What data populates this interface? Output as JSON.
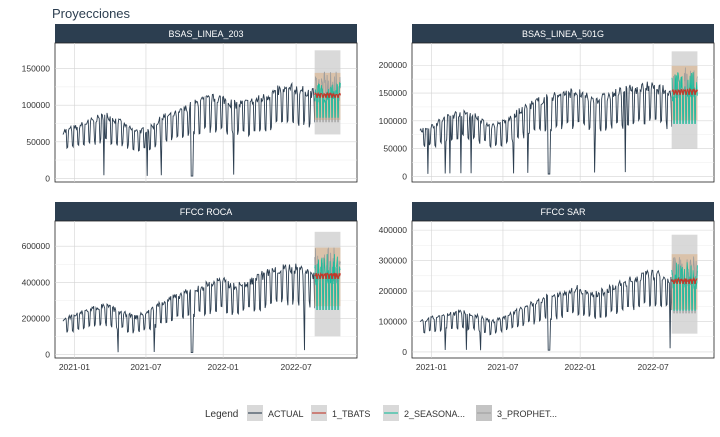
{
  "title": "Proyecciones",
  "legend": {
    "title": "Legend",
    "items": [
      {
        "label": "ACTUAL",
        "color": "#2c3e50"
      },
      {
        "label": "1_TBATS",
        "color": "#c0392b"
      },
      {
        "label": "2_SEASONA...",
        "color": "#18bc9c"
      },
      {
        "label": "3_PROPHET...",
        "color": "#a0a0a0"
      }
    ]
  },
  "colors": {
    "strip": "#2c3e50",
    "strip_text": "#ffffff",
    "actual": "#2c3e50",
    "tbats": "#c0392b",
    "seasonal": "#18bc9c",
    "prophet": "#9e9e9e",
    "band_tbats": "#d9b99a",
    "grid": "#d4d4d4"
  },
  "chart_data": [
    {
      "type": "line",
      "title": "BSAS_LINEA_203",
      "x_ticks": [
        "2021-01",
        "2021-07",
        "2022-01",
        "2022-07"
      ],
      "y_ticks": [
        0,
        50000,
        100000,
        150000
      ],
      "y_tick_labels": [
        "0",
        "50000",
        "100000",
        "150000"
      ],
      "ylim": [
        -5000,
        185000
      ],
      "trend_actual": [
        [
          0,
          65000
        ],
        [
          0.05,
          72000
        ],
        [
          0.1,
          80000
        ],
        [
          0.15,
          88000
        ],
        [
          0.2,
          78000
        ],
        [
          0.25,
          65000
        ],
        [
          0.3,
          68000
        ],
        [
          0.35,
          85000
        ],
        [
          0.4,
          90000
        ],
        [
          0.45,
          102000
        ],
        [
          0.5,
          110000
        ],
        [
          0.55,
          112000
        ],
        [
          0.6,
          103000
        ],
        [
          0.65,
          105000
        ],
        [
          0.7,
          112000
        ],
        [
          0.75,
          122000
        ],
        [
          0.8,
          125000
        ],
        [
          0.85,
          122000
        ],
        [
          0.88,
          118000
        ]
      ],
      "dip_actual": 0.45,
      "forecast_center": 112000,
      "forecast_high": 175000,
      "forecast_low": 60000
    },
    {
      "type": "line",
      "title": "BSAS_LINEA_501G",
      "x_ticks": [
        "2021-01",
        "2021-07",
        "2022-01",
        "2022-07"
      ],
      "y_ticks": [
        0,
        50000,
        100000,
        150000,
        200000
      ],
      "y_tick_labels": [
        "0",
        "50000",
        "100000",
        "150000",
        "200000"
      ],
      "ylim": [
        -10000,
        240000
      ],
      "trend_actual": [
        [
          0,
          85000
        ],
        [
          0.05,
          95000
        ],
        [
          0.1,
          110000
        ],
        [
          0.15,
          118000
        ],
        [
          0.2,
          110000
        ],
        [
          0.25,
          92000
        ],
        [
          0.3,
          100000
        ],
        [
          0.35,
          120000
        ],
        [
          0.4,
          135000
        ],
        [
          0.45,
          145000
        ],
        [
          0.5,
          152000
        ],
        [
          0.55,
          155000
        ],
        [
          0.6,
          140000
        ],
        [
          0.65,
          145000
        ],
        [
          0.7,
          155000
        ],
        [
          0.75,
          160000
        ],
        [
          0.8,
          165000
        ],
        [
          0.85,
          158000
        ],
        [
          0.88,
          150000
        ]
      ],
      "dip_actual": 0.45,
      "forecast_center": 150000,
      "forecast_high": 225000,
      "forecast_low": 50000
    },
    {
      "type": "line",
      "title": "FFCC ROCA",
      "x_ticks": [
        "2021-01",
        "2021-07",
        "2022-01",
        "2022-07"
      ],
      "y_ticks": [
        0,
        200000,
        400000,
        600000
      ],
      "y_tick_labels": [
        "0",
        "200000",
        "400000",
        "600000"
      ],
      "ylim": [
        -20000,
        740000
      ],
      "trend_actual": [
        [
          0,
          200000
        ],
        [
          0.05,
          225000
        ],
        [
          0.1,
          260000
        ],
        [
          0.15,
          275000
        ],
        [
          0.2,
          240000
        ],
        [
          0.25,
          210000
        ],
        [
          0.3,
          240000
        ],
        [
          0.35,
          300000
        ],
        [
          0.4,
          330000
        ],
        [
          0.45,
          360000
        ],
        [
          0.5,
          390000
        ],
        [
          0.55,
          420000
        ],
        [
          0.6,
          380000
        ],
        [
          0.65,
          410000
        ],
        [
          0.7,
          450000
        ],
        [
          0.75,
          480000
        ],
        [
          0.8,
          490000
        ],
        [
          0.85,
          470000
        ],
        [
          0.88,
          450000
        ]
      ],
      "dip_actual": 0.45,
      "forecast_center": 430000,
      "forecast_high": 680000,
      "forecast_low": 100000
    },
    {
      "type": "line",
      "title": "FFCC SAR",
      "x_ticks": [
        "2021-01",
        "2021-07",
        "2022-01",
        "2022-07"
      ],
      "y_ticks": [
        0,
        100000,
        200000,
        300000,
        400000
      ],
      "y_tick_labels": [
        "0",
        "100000",
        "200000",
        "300000",
        "400000"
      ],
      "ylim": [
        -20000,
        430000
      ],
      "trend_actual": [
        [
          0,
          100000
        ],
        [
          0.05,
          115000
        ],
        [
          0.1,
          125000
        ],
        [
          0.15,
          135000
        ],
        [
          0.2,
          120000
        ],
        [
          0.25,
          100000
        ],
        [
          0.3,
          120000
        ],
        [
          0.35,
          145000
        ],
        [
          0.4,
          165000
        ],
        [
          0.45,
          185000
        ],
        [
          0.5,
          200000
        ],
        [
          0.55,
          215000
        ],
        [
          0.6,
          190000
        ],
        [
          0.65,
          205000
        ],
        [
          0.7,
          225000
        ],
        [
          0.75,
          245000
        ],
        [
          0.8,
          260000
        ],
        [
          0.85,
          255000
        ],
        [
          0.88,
          240000
        ]
      ],
      "dip_actual": 0.45,
      "forecast_center": 230000,
      "forecast_high": 385000,
      "forecast_low": 60000
    }
  ]
}
